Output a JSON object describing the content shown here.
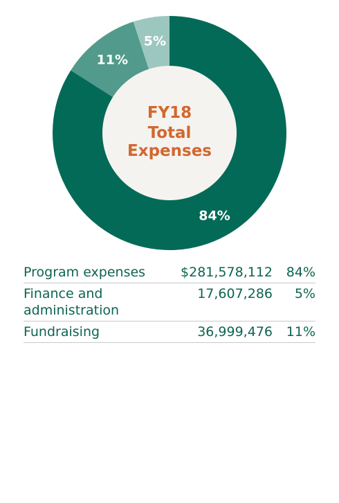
{
  "chart_data": {
    "type": "pie",
    "center_label": [
      "FY18",
      "Total",
      "Expenses"
    ],
    "slices": [
      {
        "name": "Program expenses",
        "value": 84,
        "label": "84%",
        "color": "#046a58"
      },
      {
        "name": "Fundraising",
        "value": 11,
        "label": "11%",
        "color": "#529a8b"
      },
      {
        "name": "Finance and administration",
        "value": 5,
        "label": "5%",
        "color": "#9cc7bf"
      }
    ],
    "center_color": "#f5f3ef",
    "center_text_color": "#d2672f"
  },
  "table": {
    "rows": [
      {
        "label": "Program expenses",
        "amount": "$281,578,112",
        "pct": "84%"
      },
      {
        "label": "Finance and administration",
        "amount": "17,607,286",
        "pct": "5%"
      },
      {
        "label": "Fundraising",
        "amount": "36,999,476",
        "pct": "11%"
      }
    ]
  }
}
